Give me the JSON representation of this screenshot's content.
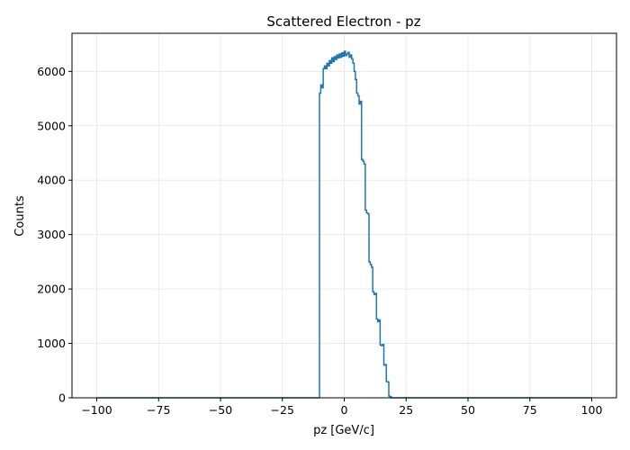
{
  "chart_data": {
    "type": "histogram-step",
    "title": "Scattered Electron - pz",
    "xlabel": "pz [GeV/c]",
    "ylabel": "Counts",
    "xlim": [
      -110,
      110
    ],
    "ylim": [
      0,
      6700
    ],
    "grid": true,
    "line_color": "#1f77b4",
    "x_ticks": [
      -100,
      -75,
      -50,
      -25,
      0,
      25,
      50,
      75,
      100
    ],
    "x_tick_labels": [
      "−100",
      "−75",
      "−50",
      "−25",
      "0",
      "25",
      "50",
      "75",
      "100"
    ],
    "y_ticks": [
      0,
      1000,
      2000,
      3000,
      4000,
      5000,
      6000
    ],
    "y_tick_labels": [
      "0",
      "1000",
      "2000",
      "3000",
      "4000",
      "5000",
      "6000"
    ],
    "bin_edges_start": -10.0,
    "bin_width": 0.5,
    "range_start": -100,
    "range_end": 100,
    "counts": [
      5600,
      5750,
      5700,
      6050,
      6100,
      6050,
      6150,
      6100,
      6200,
      6150,
      6250,
      6180,
      6270,
      6220,
      6300,
      6250,
      6320,
      6260,
      6340,
      6280,
      6370,
      6290,
      6320,
      6350,
      6260,
      6300,
      6230,
      6150,
      6000,
      5850,
      5600,
      5550,
      5400,
      5450,
      4380,
      4350,
      4300,
      3450,
      3400,
      3380,
      2500,
      2450,
      2400,
      1950,
      1900,
      1920,
      1450,
      1400,
      1430,
      970,
      960,
      980,
      600,
      610,
      300,
      290,
      30,
      20
    ]
  }
}
